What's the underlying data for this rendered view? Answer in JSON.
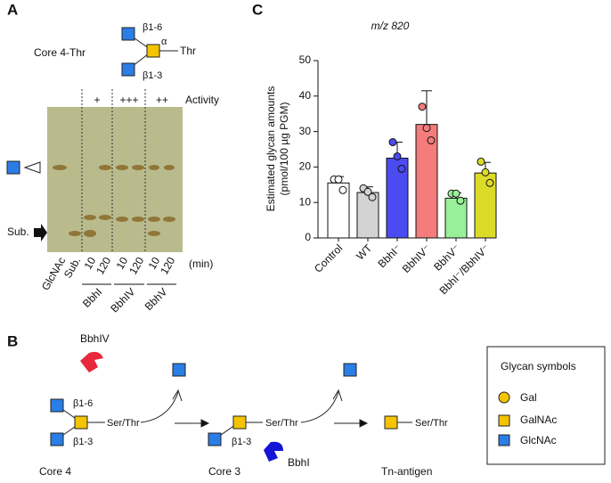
{
  "panel_a": {
    "letter": "A",
    "structure": {
      "name": "Core 4-Thr",
      "link_top": "β1-6",
      "link_bottom": "β1-3",
      "anomer": "α",
      "aglycone": "Thr"
    },
    "activity": {
      "levels": [
        "+",
        "+++",
        "++"
      ],
      "label": "Activity"
    },
    "marker_label": "Sub.",
    "lanes": [
      "GlcNAc",
      "Sub.",
      "10",
      "120",
      "10",
      "120",
      "10",
      "120"
    ],
    "time_unit": "(min)",
    "enzymes": [
      "BbhI",
      "BbhIV",
      "BbhV"
    ]
  },
  "panel_b": {
    "letter": "B",
    "enzyme_top": "BbhIV",
    "core4": {
      "link_top": "β1-6",
      "link_bottom": "β1-3",
      "aglycone": "Ser/Thr",
      "name": "Core 4"
    },
    "core3": {
      "link_bottom": "β1-3",
      "aglycone": "Ser/Thr",
      "name": "Core 3"
    },
    "enzyme_bottom": "BbhI",
    "tn": {
      "aglycone": "Ser/Thr",
      "name": "Tn-antigen"
    },
    "legend": {
      "title": "Glycan symbols",
      "items": [
        "Gal",
        "GalNAc",
        "GlcNAc"
      ]
    }
  },
  "chart_data": {
    "type": "bar",
    "letter": "C",
    "title": "m/z 820",
    "ylabel": [
      "Estimated glycan amounts",
      "(pmol/100 µg PGM)"
    ],
    "categories": [
      "Control",
      "WT",
      "BbhI⁻",
      "BbhIV⁻",
      "BbhV⁻",
      "BbhI⁻/BbhIV⁻"
    ],
    "values": [
      15.5,
      12.8,
      22.5,
      32,
      11.2,
      18.3
    ],
    "errors": [
      1.8,
      1.6,
      4.5,
      9.5,
      1.5,
      3
    ],
    "points": [
      [
        16.5,
        16.5,
        13.5
      ],
      [
        14,
        13,
        11.5
      ],
      [
        27,
        23,
        19.5
      ],
      [
        37,
        31,
        27.5
      ],
      [
        12.5,
        12.5,
        10.5
      ],
      [
        21.5,
        18.5,
        15.5
      ]
    ],
    "colors": [
      "#ffffff",
      "#d3d3d3",
      "#4b4bf2",
      "#f47c7c",
      "#98f098",
      "#dcdc28"
    ],
    "ylim": [
      0,
      50
    ],
    "yticks": [
      0,
      10,
      20,
      30,
      40,
      50
    ]
  }
}
